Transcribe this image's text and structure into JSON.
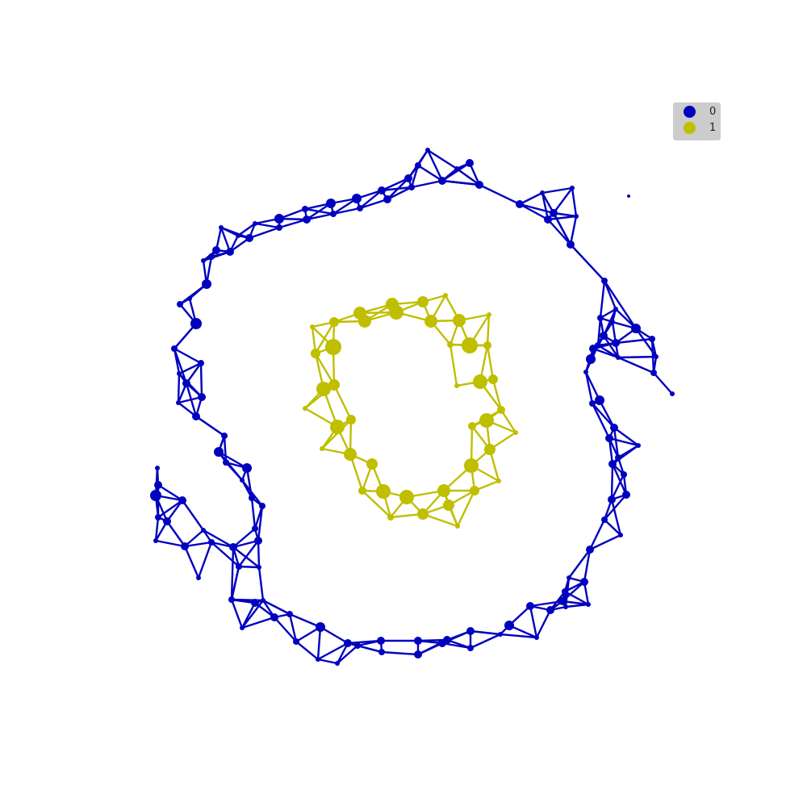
{
  "colors": {
    "class_0": "#0000bf",
    "class_1": "#bfbf00",
    "background": "#ffffff",
    "legend_bg": "#cccccc"
  },
  "legend": {
    "position": "top-right",
    "entries": [
      {
        "label": "0",
        "color": "#0000bf"
      },
      {
        "label": "1",
        "color": "#bfbf00"
      }
    ]
  },
  "chart_data": {
    "type": "network",
    "title": "",
    "axes_visible": false,
    "classes": [
      {
        "label": "0",
        "color": "#0000bf",
        "shape": "outer spiral ring, with an isolated node at top-right"
      },
      {
        "label": "1",
        "color": "#bfbf00",
        "shape": "inner closed ring"
      }
    ]
  }
}
